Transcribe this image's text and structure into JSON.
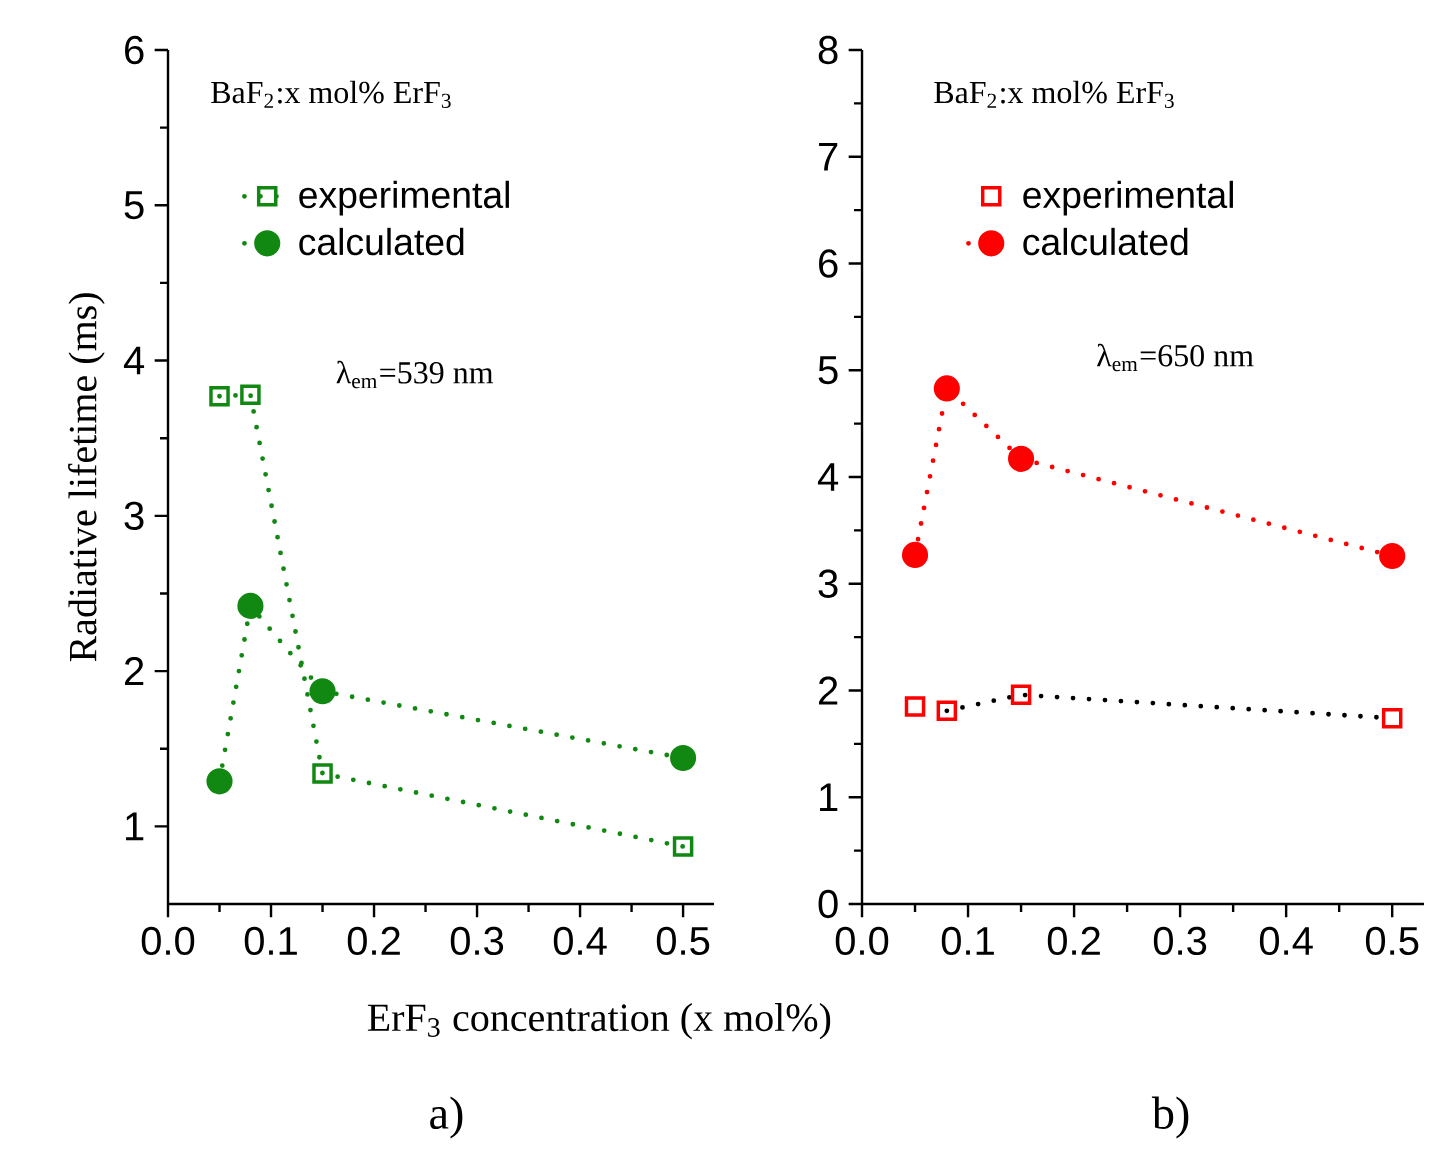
{
  "chart_data": [
    {
      "type": "line",
      "xlabel": "ErF$_{3}$ concentration (x mol%)",
      "ylabel": "Radiative lifetime (ms)",
      "annotations": [
        "BaF$_{2}$:x mol% ErF$_{3}$",
        "λ$_{em}$=539 nm",
        "a)"
      ],
      "x": [
        0.05,
        0.08,
        0.15,
        0.5
      ],
      "series": [
        {
          "name": "experimental",
          "color": "#118811",
          "marker": "square",
          "line_style": "dotted",
          "values": [
            3.77,
            3.78,
            1.34,
            0.87
          ]
        },
        {
          "name": "calculated",
          "color": "#118811",
          "marker": "circle",
          "line_style": "dotted",
          "values": [
            1.29,
            2.42,
            1.87,
            1.44
          ]
        }
      ],
      "xlim": [
        0,
        0.53
      ],
      "ylim": [
        0.5,
        6
      ],
      "xticks": [
        {
          "value": 0,
          "label": "0.0"
        },
        0.1,
        0.2,
        0.3,
        0.4,
        0.5
      ],
      "yticks": [
        1,
        2,
        3,
        4,
        5,
        6
      ],
      "legend": "top left",
      "grid": false
    },
    {
      "type": "line",
      "annotations": [
        "BaF$_{2}$:x mol% ErF$_{3}$",
        "λ$_{em}$=650 nm",
        "b)"
      ],
      "x": [
        0.05,
        0.08,
        0.15,
        0.5
      ],
      "series": [
        {
          "type": "line",
          "color": "#000000",
          "marker": "none",
          "line_style": "dotted",
          "x": [
            0.08,
            0.15,
            0.5
          ],
          "values": [
            1.81,
            1.96,
            1.74
          ]
        },
        {
          "type": "scatter",
          "name": "experimental",
          "color": "#ff0000",
          "marker": "square",
          "values": [
            1.85,
            1.81,
            1.96,
            1.74
          ]
        },
        {
          "name": "calculated",
          "color": "#ff0000",
          "marker": "circle",
          "line_style": "dotted",
          "values": [
            3.27,
            4.83,
            4.17,
            3.26
          ]
        }
      ],
      "xlim": [
        0,
        0.53
      ],
      "ylim": [
        0,
        8
      ],
      "xticks": [
        {
          "value": 0,
          "label": "0.0"
        },
        0.1,
        0.2,
        0.3,
        0.4,
        0.5
      ],
      "yticks": [
        0,
        1,
        2,
        3,
        4,
        5,
        6,
        7,
        8
      ],
      "legend": "top left",
      "grid": false
    }
  ]
}
